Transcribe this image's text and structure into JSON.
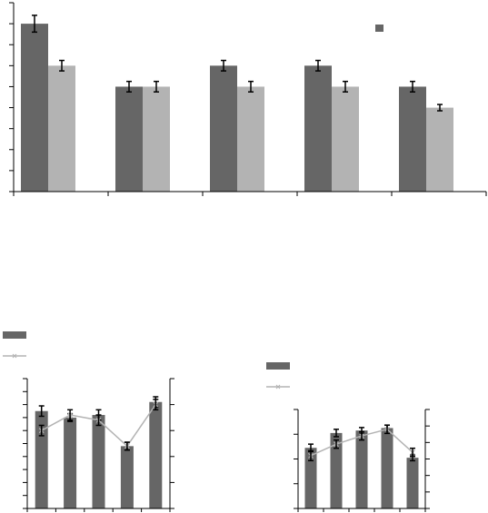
{
  "colors": {
    "bar_dark": "#666666",
    "bar_light": "#b3b3b3",
    "line": "#b3b3b3",
    "error": "#000000",
    "axis": "#000000"
  },
  "chart_data": [
    {
      "id": "top",
      "type": "bar",
      "title": "",
      "xlabel": "",
      "ylabel": "",
      "ylim": [
        0,
        9
      ],
      "y_ticks": [
        0,
        1,
        2,
        3,
        4,
        5,
        6,
        7,
        8,
        9
      ],
      "grid": false,
      "legend_position": "top-right",
      "categories": [
        "",
        "",
        "",
        "",
        ""
      ],
      "series": [
        {
          "color": "#666666",
          "values": [
            8,
            5,
            6,
            6,
            5
          ],
          "errors": [
            0.4,
            0.25,
            0.25,
            0.25,
            0.25
          ]
        },
        {
          "color": "#b3b3b3",
          "values": [
            6,
            5,
            5,
            5,
            4
          ],
          "errors": [
            0.25,
            0.25,
            0.25,
            0.25,
            0.15
          ]
        }
      ]
    },
    {
      "id": "bottom-left",
      "type": "bar",
      "title": "",
      "xlabel": "",
      "ylabel": "",
      "ylim": [
        0,
        10
      ],
      "y_ticks": [
        0,
        1,
        2,
        3,
        4,
        5,
        6,
        7,
        8,
        9,
        10
      ],
      "y2lim": [
        0,
        5
      ],
      "y2_ticks": [
        0,
        1,
        2,
        3,
        4,
        5
      ],
      "grid": false,
      "legend_position": "top-left",
      "categories": [
        "",
        "",
        "",
        "",
        ""
      ],
      "bars": {
        "color": "#666666",
        "values": [
          7.5,
          7.0,
          7.2,
          4.8,
          8.2
        ],
        "errors": [
          0.4,
          0.3,
          0.4,
          0.3,
          0.4
        ]
      },
      "line": {
        "color": "#b3b3b3",
        "values": [
          3.0,
          3.6,
          3.4,
          2.4,
          4.0
        ],
        "errors": [
          0.2,
          0.2,
          0.2,
          0.15,
          0.2
        ]
      }
    },
    {
      "id": "bottom-right",
      "type": "bar",
      "title": "",
      "xlabel": "",
      "ylabel": "",
      "ylim": [
        0,
        4
      ],
      "y_ticks": [
        0,
        1,
        2,
        3,
        4
      ],
      "y2lim": [
        0,
        6
      ],
      "y2_ticks": [
        0,
        1,
        2,
        3,
        4,
        5,
        6
      ],
      "grid": false,
      "legend_position": "top-left",
      "categories": [
        "",
        "",
        "",
        "",
        ""
      ],
      "bars": {
        "color": "#666666",
        "values": [
          2.45,
          3.05,
          3.15,
          3.25,
          2.05
        ],
        "errors": [
          0.15,
          0.15,
          0.12,
          0.12,
          0.12
        ]
      },
      "line": {
        "color": "#b3b3b3",
        "values": [
          3.2,
          3.9,
          4.4,
          4.8,
          3.4
        ],
        "errors": [
          0.3,
          0.25,
          0.25,
          0.25,
          0.25
        ]
      }
    }
  ]
}
